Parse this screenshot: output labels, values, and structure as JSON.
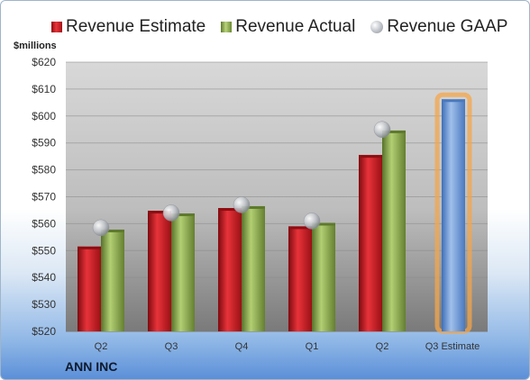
{
  "legend": {
    "estimate_label": "Revenue Estimate",
    "actual_label": "Revenue Actual",
    "gaap_label": "Revenue GAAP"
  },
  "units_label": "$millions",
  "company": "ANN INC",
  "colors": {
    "estimate": "#c8252a",
    "actual": "#8fad52",
    "gaap": "#c4c7cc",
    "forecast": "#6f9bd6",
    "forecast_glow": "#f4a64a"
  },
  "chart_data": {
    "type": "bar",
    "categories": [
      "Q2",
      "Q3",
      "Q4",
      "Q1",
      "Q2",
      "Q3 Estimate"
    ],
    "series": [
      {
        "name": "Revenue Estimate",
        "values": [
          551.5,
          564.8,
          565.8,
          559.0,
          585.5,
          606.2
        ]
      },
      {
        "name": "Revenue Actual",
        "values": [
          557.8,
          563.8,
          566.5,
          560.3,
          594.6,
          null
        ]
      },
      {
        "name": "Revenue GAAP",
        "values": [
          558.5,
          564.0,
          567.0,
          561.0,
          595.0,
          null
        ]
      }
    ],
    "ylim": [
      520,
      620
    ],
    "yticks": [
      "$520",
      "$530",
      "$540",
      "$550",
      "$560",
      "$570",
      "$580",
      "$590",
      "$600",
      "$610",
      "$620"
    ],
    "grid": true,
    "legend_position": "top"
  }
}
